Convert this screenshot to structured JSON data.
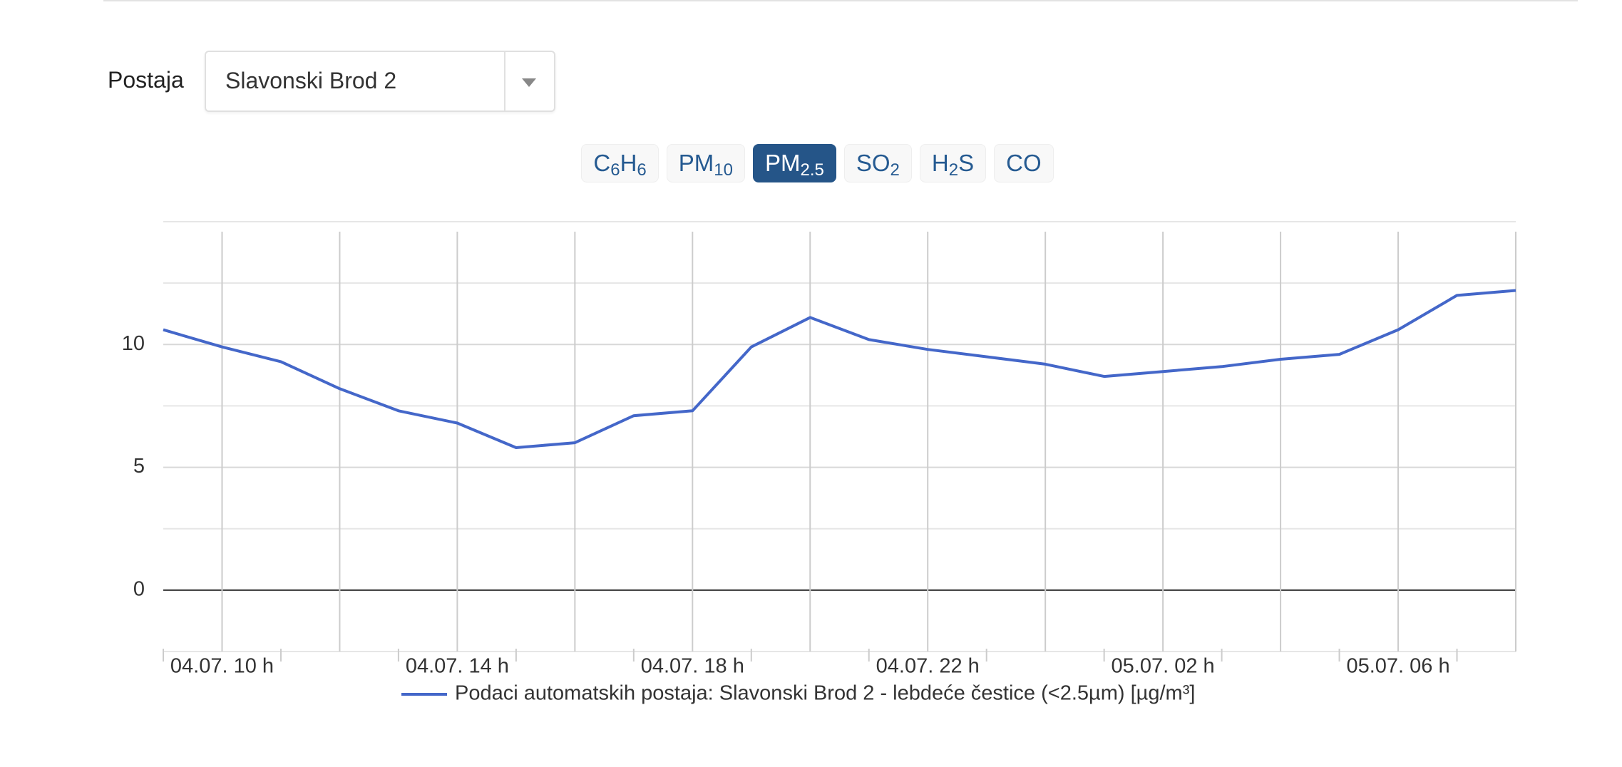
{
  "station_label": "Postaja",
  "station_selected": "Slavonski Brod 2",
  "buttons": [
    [
      "C",
      "6",
      "H",
      "6"
    ],
    [
      "PM",
      "10"
    ],
    [
      "PM",
      "2.5"
    ],
    [
      "SO",
      "2"
    ],
    [
      "H",
      "2",
      "S"
    ],
    [
      "CO"
    ]
  ],
  "active_button": 2,
  "chart_data": {
    "type": "line",
    "categories": [
      null,
      "04.07. 10 h",
      null,
      null,
      null,
      "04.07. 14 h",
      null,
      null,
      null,
      "04.07. 18 h",
      null,
      null,
      null,
      "04.07. 22 h",
      null,
      null,
      null,
      "05.07. 02 h",
      null,
      null,
      null,
      "05.07. 06 h",
      null,
      null
    ],
    "series": [
      {
        "name": "Podaci automatskih postaja: Slavonski Brod 2 - lebdeće čestice (<2.5µm) [µg/m³]",
        "color": "#4467c9",
        "values": [
          10.6,
          9.9,
          9.3,
          8.2,
          7.3,
          6.8,
          5.8,
          6.0,
          7.1,
          7.3,
          9.9,
          11.1,
          10.2,
          9.8,
          9.5,
          9.2,
          8.7,
          8.9,
          9.1,
          9.4,
          9.6,
          10.6,
          12.0,
          12.2
        ]
      }
    ],
    "ylim": [
      -2.5,
      15
    ],
    "yticks": [
      0,
      5,
      10
    ],
    "yticks_minor": [
      -2.5,
      2.5,
      7.5,
      12.5,
      15
    ],
    "grid": true,
    "legend": "bottom"
  }
}
